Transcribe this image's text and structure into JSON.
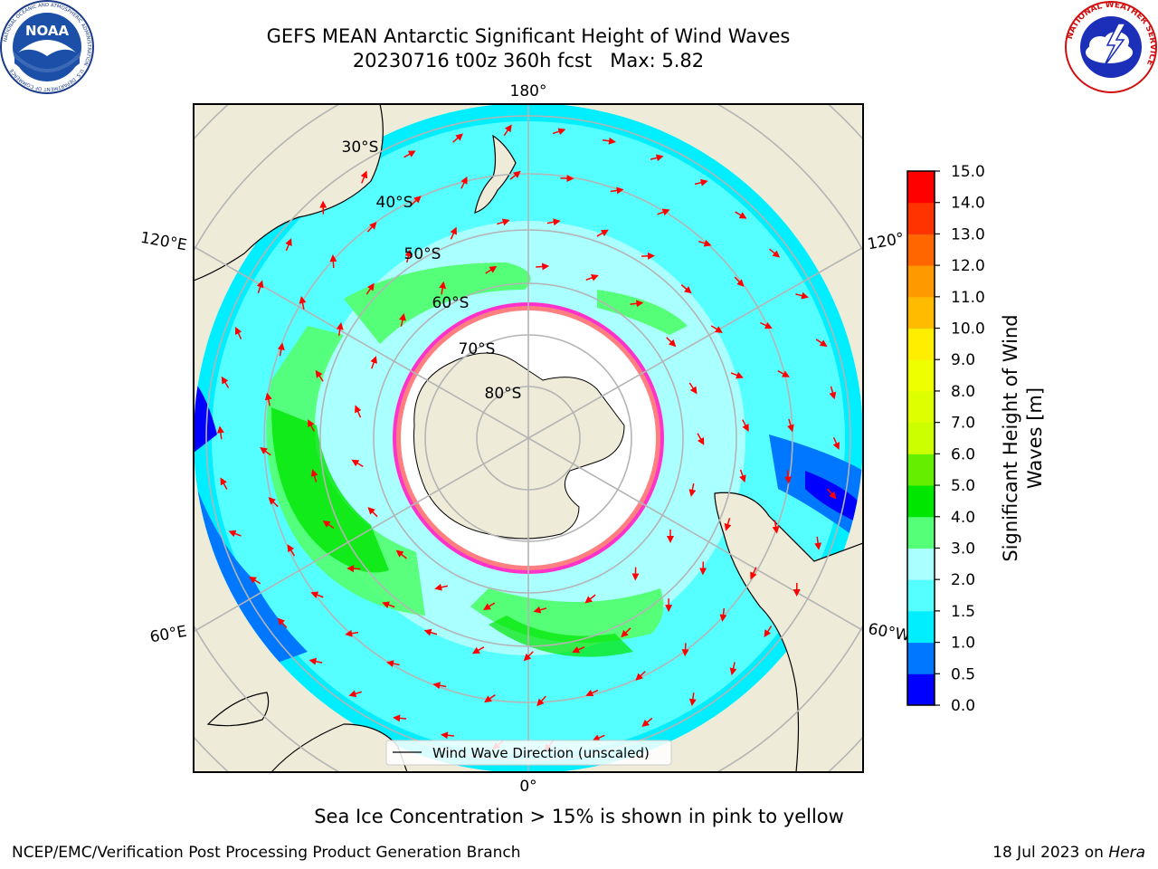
{
  "header": {
    "title_line1": "GEFS MEAN Antarctic Significant Height of Wind Waves",
    "title_line2": "20230716 t00z 360h fcst   Max: 5.82"
  },
  "logos": {
    "left": "noaa-logo",
    "left_text": "NOAA",
    "left_ring_text": "NATIONAL OCEANIC AND ATMOSPHERIC ADMINISTRATION · U.S. DEPARTMENT OF COMMERCE",
    "right": "national-weather-service-logo",
    "right_ring_text": "NATIONAL WEATHER SERVICE"
  },
  "map": {
    "projection": "south-polar-stereographic",
    "longitude_labels": [
      "180°",
      "120°E",
      "120°",
      "60°E",
      "60°W",
      "0°"
    ],
    "latitude_labels": [
      "30°S",
      "40°S",
      "50°S",
      "60°S",
      "70°S",
      "80°S"
    ],
    "legend_label": "Wind Wave Direction (unscaled)",
    "colors": {
      "land": "#eeecd9",
      "ice_free_ocean_white": "#ffffff",
      "sea_ice_pink": "#ff33cc",
      "sea_ice_yellow": "#ffcc33",
      "arrow": "#ff0000",
      "graticule": "#b4b4b4"
    }
  },
  "colorbar": {
    "label_line1": "Significant Height of Wind",
    "label_line2": "Waves [m]",
    "ticks": [
      "15.0",
      "14.0",
      "13.0",
      "12.0",
      "11.0",
      "10.0",
      "9.0",
      "8.0",
      "7.0",
      "6.0",
      "5.0",
      "4.0",
      "3.0",
      "2.0",
      "1.5",
      "1.0",
      "0.5",
      "0.0"
    ],
    "bins": [
      {
        "from": 0.0,
        "to": 0.5,
        "color": "#0000ff"
      },
      {
        "from": 0.5,
        "to": 1.0,
        "color": "#0077ff"
      },
      {
        "from": 1.0,
        "to": 1.5,
        "color": "#00eeff"
      },
      {
        "from": 1.5,
        "to": 2.0,
        "color": "#55ffff"
      },
      {
        "from": 2.0,
        "to": 3.0,
        "color": "#aaffff"
      },
      {
        "from": 3.0,
        "to": 4.0,
        "color": "#55ff77"
      },
      {
        "from": 4.0,
        "to": 5.0,
        "color": "#00e600"
      },
      {
        "from": 5.0,
        "to": 6.0,
        "color": "#66ee00"
      },
      {
        "from": 6.0,
        "to": 7.0,
        "color": "#ccff00"
      },
      {
        "from": 7.0,
        "to": 8.0,
        "color": "#ddff00"
      },
      {
        "from": 8.0,
        "to": 9.0,
        "color": "#eeff00"
      },
      {
        "from": 9.0,
        "to": 10.0,
        "color": "#ffee00"
      },
      {
        "from": 10.0,
        "to": 11.0,
        "color": "#ffbb00"
      },
      {
        "from": 11.0,
        "to": 12.0,
        "color": "#ff9900"
      },
      {
        "from": 12.0,
        "to": 13.0,
        "color": "#ff6600"
      },
      {
        "from": 13.0,
        "to": 14.0,
        "color": "#ff3300"
      },
      {
        "from": 14.0,
        "to": 15.0,
        "color": "#ff0000"
      }
    ]
  },
  "footer": {
    "sea_ice_note": "Sea Ice Concentration > 15% is shown in pink to yellow",
    "left": "NCEP/EMC/Verification Post Processing Product Generation Branch",
    "right_prefix": "18 Jul 2023 on ",
    "right_host": "Hera"
  }
}
